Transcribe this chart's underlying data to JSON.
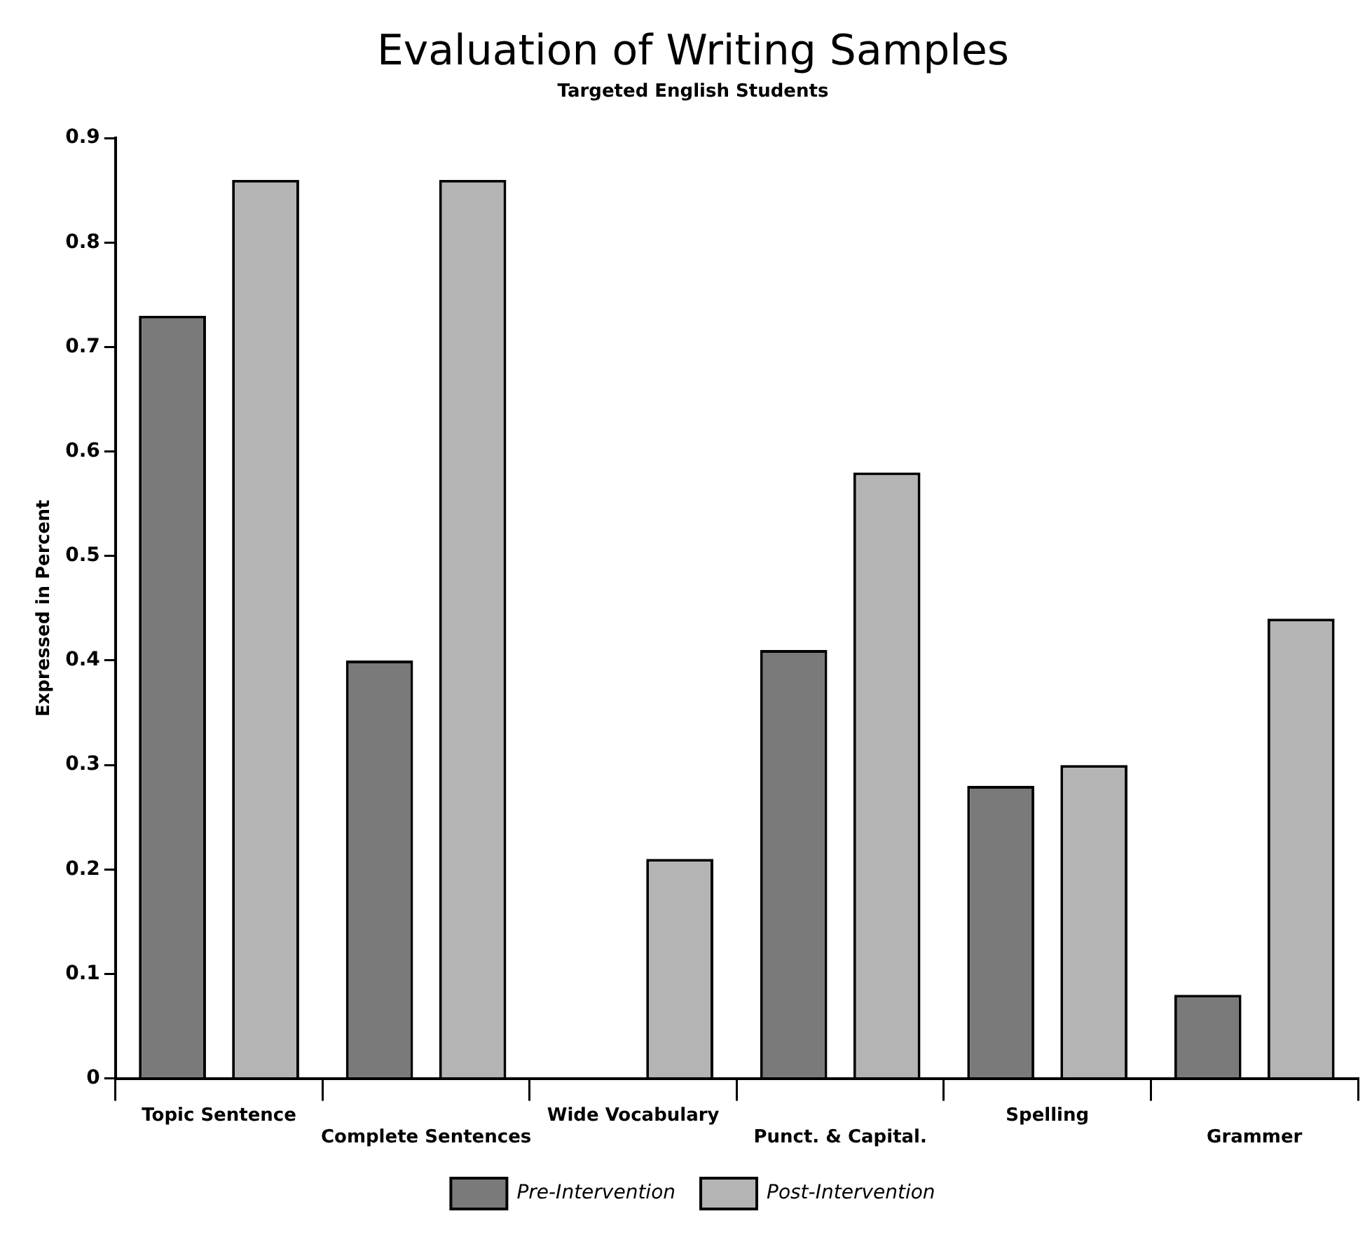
{
  "chart_data": {
    "type": "bar",
    "title": "Evaluation of Writing Samples",
    "subtitle": "Targeted English Students",
    "ylabel": "Expressed in Percent",
    "categories": [
      "Topic Sentence",
      "Complete Sentences",
      "Wide Vocabulary",
      "Punct. & Capital.",
      "Spelling",
      "Grammer"
    ],
    "series": [
      {
        "name": "Pre-Intervention",
        "color": "#7a7a7a",
        "values": [
          0.73,
          0.4,
          0,
          0.41,
          0.28,
          0.08
        ]
      },
      {
        "name": "Post-Intervention",
        "color": "#b4b4b4",
        "values": [
          0.86,
          0.86,
          0.21,
          0.58,
          0.3,
          0.44
        ]
      }
    ],
    "ylim": [
      0,
      0.9
    ],
    "yticks": [
      0,
      0.1,
      0.2,
      0.3,
      0.4,
      0.5,
      0.6,
      0.7,
      0.8,
      0.9
    ],
    "grid": false,
    "legend": "bottom"
  }
}
